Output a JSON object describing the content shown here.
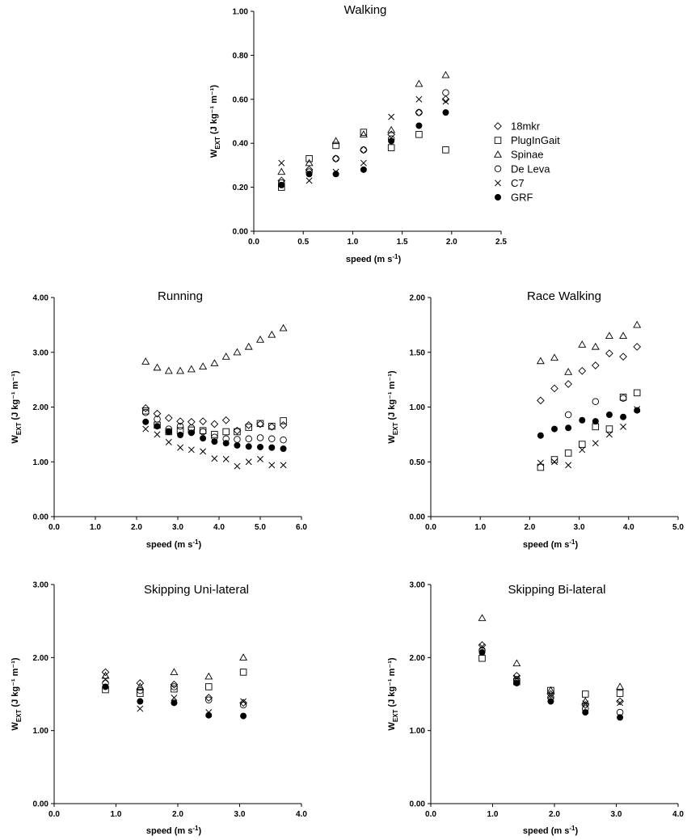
{
  "figure": {
    "ylabel": {
      "main": "W",
      "sub": "EXT",
      "unit": "(J kg⁻¹ m⁻¹)"
    },
    "xlabel": {
      "main": "speed (m s",
      "sup": "-1",
      "close": ")"
    }
  },
  "legend": [
    {
      "name": "18mkr",
      "marker": "diamond"
    },
    {
      "name": "PlugInGait",
      "marker": "square"
    },
    {
      "name": "Spinae",
      "marker": "triangle"
    },
    {
      "name": "De Leva",
      "marker": "circle"
    },
    {
      "name": "C7",
      "marker": "x"
    },
    {
      "name": "GRF",
      "marker": "filled-circle"
    }
  ],
  "colors": {
    "ink": "#000000",
    "fill": "#000000",
    "background": "#ffffff"
  },
  "chart_data": [
    {
      "type": "scatter",
      "title": "Walking",
      "xlabel": "speed (m s-1)",
      "ylabel": "WEXT (J kg-1 m-1)",
      "xlim": [
        0,
        2.5
      ],
      "ylim": [
        0,
        1.0
      ],
      "xticks": [
        "0.0",
        "0.5",
        "1.0",
        "1.5",
        "2.0",
        "2.5"
      ],
      "yticks": [
        "0.00",
        "0.20",
        "0.40",
        "0.60",
        "0.80",
        "1.00"
      ],
      "x": [
        0.28,
        0.56,
        0.83,
        1.11,
        1.39,
        1.67,
        1.94
      ],
      "series": [
        {
          "name": "18mkr",
          "values": [
            0.23,
            0.28,
            0.33,
            0.37,
            0.44,
            0.54,
            0.6
          ]
        },
        {
          "name": "PlugInGait",
          "values": [
            0.2,
            0.33,
            0.39,
            0.45,
            0.38,
            0.44,
            0.37
          ]
        },
        {
          "name": "Spinae",
          "values": [
            0.27,
            0.31,
            0.41,
            0.44,
            0.46,
            0.67,
            0.71
          ]
        },
        {
          "name": "De Leva",
          "values": [
            0.22,
            0.27,
            0.33,
            0.37,
            0.42,
            0.54,
            0.63
          ]
        },
        {
          "name": "C7",
          "values": [
            0.31,
            0.23,
            0.27,
            0.31,
            0.52,
            0.6,
            0.59
          ]
        },
        {
          "name": "GRF",
          "values": [
            0.21,
            0.26,
            0.26,
            0.28,
            0.41,
            0.48,
            0.54
          ]
        }
      ]
    },
    {
      "type": "scatter",
      "title": "Running",
      "xlabel": "speed (m s-1)",
      "ylabel": "WEXT (J kg-1 m-1)",
      "xlim": [
        0,
        6.0
      ],
      "ylim": [
        0,
        4.0
      ],
      "xticks": [
        "0.0",
        "1.0",
        "2.0",
        "3.0",
        "4.0",
        "5.0",
        "6.0"
      ],
      "yticks": [
        "0.00",
        "1.00",
        "2.00",
        "3.00",
        "4.00"
      ],
      "x": [
        2.22,
        2.5,
        2.78,
        3.06,
        3.33,
        3.61,
        3.89,
        4.17,
        4.44,
        4.72,
        5.0,
        5.28,
        5.56
      ],
      "series": [
        {
          "name": "18mkr",
          "values": [
            1.98,
            1.88,
            1.8,
            1.74,
            1.73,
            1.74,
            1.69,
            1.76,
            1.57,
            1.67,
            1.69,
            1.64,
            1.67
          ]
        },
        {
          "name": "PlugInGait",
          "values": [
            1.93,
            1.67,
            1.55,
            1.57,
            1.58,
            1.57,
            1.5,
            1.55,
            1.55,
            1.63,
            1.7,
            1.65,
            1.75
          ]
        },
        {
          "name": "Spinae",
          "values": [
            2.83,
            2.72,
            2.66,
            2.66,
            2.69,
            2.74,
            2.8,
            2.92,
            3.0,
            3.1,
            3.23,
            3.32,
            3.44
          ]
        },
        {
          "name": "De Leva",
          "values": [
            1.9,
            1.78,
            1.6,
            1.65,
            1.62,
            1.55,
            1.45,
            1.42,
            1.41,
            1.42,
            1.44,
            1.42,
            1.4
          ]
        },
        {
          "name": "C7",
          "values": [
            1.6,
            1.5,
            1.36,
            1.26,
            1.22,
            1.19,
            1.06,
            1.05,
            0.92,
            1.0,
            1.05,
            0.94,
            0.94
          ]
        },
        {
          "name": "GRF",
          "values": [
            1.73,
            1.65,
            1.55,
            1.49,
            1.53,
            1.43,
            1.37,
            1.34,
            1.3,
            1.28,
            1.27,
            1.26,
            1.24
          ]
        }
      ]
    },
    {
      "type": "scatter",
      "title": "Race Walking",
      "xlabel": "speed (m s-1)",
      "ylabel": "WEXT (J kg-1 m-1)",
      "xlim": [
        0,
        5.0
      ],
      "ylim": [
        0,
        2.0
      ],
      "xticks": [
        "0.0",
        "1.0",
        "2.0",
        "3.0",
        "4.0",
        "5.0"
      ],
      "yticks": [
        "0.00",
        "0.50",
        "1.00",
        "1.50",
        "2.00"
      ],
      "x": [
        2.22,
        2.5,
        2.78,
        3.06,
        3.33,
        3.61,
        3.89,
        4.17
      ],
      "series": [
        {
          "name": "18mkr",
          "values": [
            1.06,
            1.17,
            1.21,
            1.33,
            1.38,
            1.49,
            1.46,
            1.55
          ]
        },
        {
          "name": "PlugInGait",
          "values": [
            0.45,
            0.52,
            0.58,
            0.66,
            0.82,
            0.8,
            1.09,
            1.13
          ]
        },
        {
          "name": "Spinae",
          "values": [
            1.42,
            1.45,
            1.32,
            1.57,
            1.55,
            1.65,
            1.65,
            1.75
          ]
        },
        {
          "name": "De Leva",
          "values": [
            null,
            null,
            0.93,
            null,
            1.05,
            null,
            1.08,
            null
          ]
        },
        {
          "name": "C7",
          "values": [
            0.49,
            0.5,
            0.47,
            0.61,
            0.67,
            0.75,
            0.82,
            0.98
          ]
        },
        {
          "name": "GRF",
          "values": [
            0.74,
            0.8,
            0.81,
            0.88,
            0.87,
            0.93,
            0.91,
            0.97
          ]
        }
      ]
    },
    {
      "type": "scatter",
      "title": "Skipping  Uni-lateral",
      "xlabel": "speed (m s-1)",
      "ylabel": "WEXT (J kg-1 m-1)",
      "xlim": [
        0,
        4.0
      ],
      "ylim": [
        0,
        3.0
      ],
      "xticks": [
        "0.0",
        "1.0",
        "2.0",
        "3.0",
        "4.0"
      ],
      "yticks": [
        "0.00",
        "1.00",
        "2.00",
        "3.00"
      ],
      "x": [
        0.83,
        1.39,
        1.94,
        2.5,
        3.06
      ],
      "series": [
        {
          "name": "18mkr",
          "values": [
            1.8,
            1.65,
            1.63,
            1.45,
            1.38
          ]
        },
        {
          "name": "PlugInGait",
          "values": [
            1.56,
            1.51,
            1.57,
            1.6,
            1.8
          ]
        },
        {
          "name": "Spinae",
          "values": [
            1.75,
            1.6,
            1.8,
            1.74,
            2.0
          ]
        },
        {
          "name": "De Leva",
          "values": [
            1.65,
            1.55,
            1.6,
            1.42,
            1.35
          ]
        },
        {
          "name": "C7",
          "values": [
            1.7,
            1.3,
            1.45,
            1.25,
            1.4
          ]
        },
        {
          "name": "GRF",
          "values": [
            1.6,
            1.4,
            1.38,
            1.21,
            1.2
          ]
        }
      ]
    },
    {
      "type": "scatter",
      "title": "Skipping Bi-lateral",
      "xlabel": "speed (m s-1)",
      "ylabel": "WEXT (J kg-1 m-1)",
      "xlim": [
        0,
        4.0
      ],
      "ylim": [
        0,
        3.0
      ],
      "xticks": [
        "0.0",
        "1.0",
        "2.0",
        "3.0",
        "4.0"
      ],
      "yticks": [
        "0.00",
        "1.00",
        "2.00",
        "3.00"
      ],
      "x": [
        0.83,
        1.39,
        1.94,
        2.5,
        3.06
      ],
      "series": [
        {
          "name": "18mkr",
          "values": [
            2.17,
            1.75,
            1.5,
            1.35,
            1.4
          ]
        },
        {
          "name": "PlugInGait",
          "values": [
            1.99,
            1.67,
            1.55,
            1.5,
            1.51
          ]
        },
        {
          "name": "Spinae",
          "values": [
            2.54,
            1.92,
            1.55,
            1.4,
            1.6
          ]
        },
        {
          "name": "De Leva",
          "values": [
            2.1,
            1.7,
            1.45,
            1.3,
            1.25
          ]
        },
        {
          "name": "C7",
          "values": [
            2.15,
            1.72,
            1.48,
            1.37,
            1.38
          ]
        },
        {
          "name": "GRF",
          "values": [
            2.07,
            1.65,
            1.4,
            1.25,
            1.18
          ]
        }
      ]
    }
  ]
}
